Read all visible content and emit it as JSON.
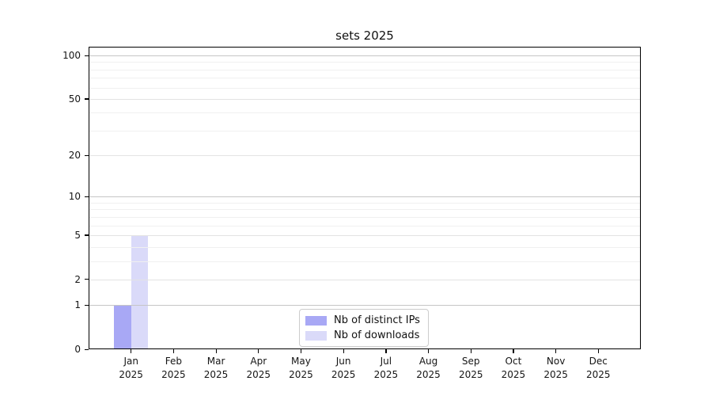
{
  "chart_data": {
    "type": "bar",
    "title": "sets 2025",
    "categories": [
      {
        "month": "Jan",
        "year": "2025"
      },
      {
        "month": "Feb",
        "year": "2025"
      },
      {
        "month": "Mar",
        "year": "2025"
      },
      {
        "month": "Apr",
        "year": "2025"
      },
      {
        "month": "May",
        "year": "2025"
      },
      {
        "month": "Jun",
        "year": "2025"
      },
      {
        "month": "Jul",
        "year": "2025"
      },
      {
        "month": "Aug",
        "year": "2025"
      },
      {
        "month": "Sep",
        "year": "2025"
      },
      {
        "month": "Oct",
        "year": "2025"
      },
      {
        "month": "Nov",
        "year": "2025"
      },
      {
        "month": "Dec",
        "year": "2025"
      }
    ],
    "series": [
      {
        "name": "Nb of distinct IPs",
        "color": "#a8a8f5",
        "values": [
          1,
          0,
          0,
          0,
          0,
          0,
          0,
          0,
          0,
          0,
          0,
          0
        ]
      },
      {
        "name": "Nb of downloads",
        "color": "#dadaf9",
        "values": [
          5,
          0,
          0,
          0,
          0,
          0,
          0,
          0,
          0,
          0,
          0,
          0
        ]
      }
    ],
    "xlabel": "",
    "ylabel": "",
    "y_scale": "log1p",
    "ylim": [
      0,
      110
    ],
    "y_ticks": [
      {
        "label": "0",
        "value": 0
      },
      {
        "label": "1",
        "value": 1
      },
      {
        "label": "2",
        "value": 2
      },
      {
        "label": "5",
        "value": 5
      },
      {
        "label": "10",
        "value": 10
      },
      {
        "label": "20",
        "value": 20
      },
      {
        "label": "50",
        "value": 50
      },
      {
        "label": "100",
        "value": 100
      }
    ],
    "y_minor_ticks": [
      3,
      4,
      6,
      7,
      8,
      9,
      30,
      40,
      60,
      70,
      80,
      90
    ],
    "grid": true,
    "legend_position": "bottom-center"
  },
  "colors": {
    "grid_major_pow10": "#c6c6c6",
    "grid_major": "#e3e3e3",
    "grid_minor": "#f0f0f0",
    "axis": "#000000",
    "text": "#151515"
  }
}
